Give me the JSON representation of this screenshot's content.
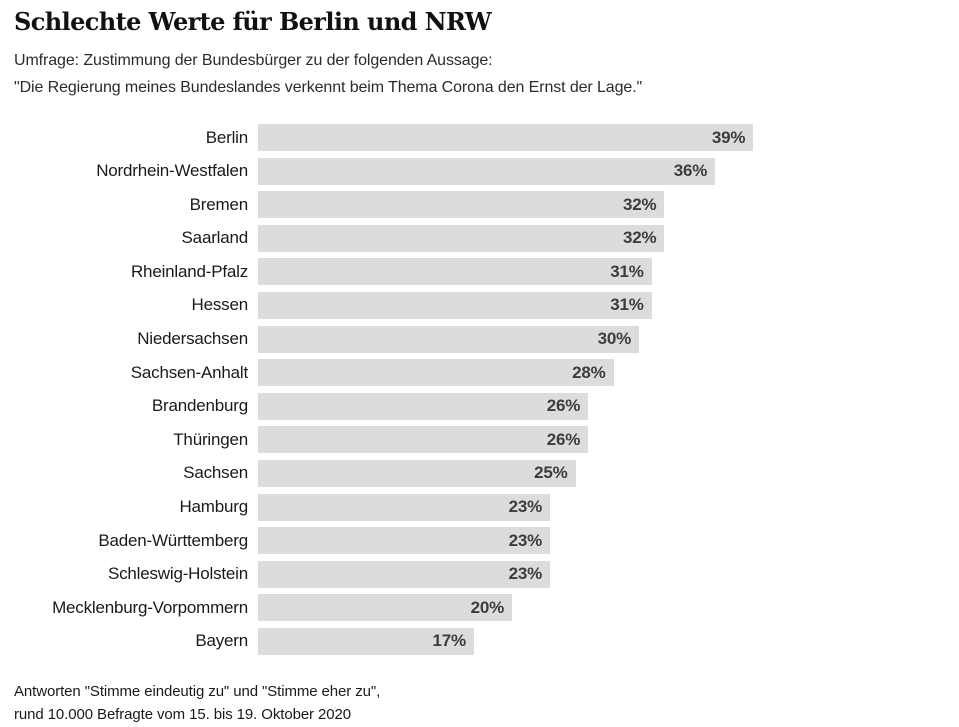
{
  "header": {
    "title": "Schlechte Werte für Berlin und NRW",
    "subtitle_line1": "Umfrage: Zustimmung der Bundesbürger zu der folgenden Aussage:",
    "subtitle_line2": "\"Die Regierung meines Bundeslandes verkennt beim Thema Corona den Ernst der Lage.\""
  },
  "chart_data": {
    "type": "bar",
    "orientation": "horizontal",
    "title": "Schlechte Werte für Berlin und NRW",
    "categories": [
      "Berlin",
      "Nordrhein-Westfalen",
      "Bremen",
      "Saarland",
      "Rheinland-Pfalz",
      "Hessen",
      "Niedersachsen",
      "Sachsen-Anhalt",
      "Brandenburg",
      "Thüringen",
      "Sachsen",
      "Hamburg",
      "Baden-Württemberg",
      "Schleswig-Holstein",
      "Mecklenburg-Vorpommern",
      "Bayern"
    ],
    "values": [
      39,
      36,
      32,
      32,
      31,
      31,
      30,
      28,
      26,
      26,
      25,
      23,
      23,
      23,
      20,
      17
    ],
    "value_suffix": "%",
    "xlim": [
      0,
      40
    ],
    "grid": false,
    "legend": false,
    "bar_color": "#dcdcda",
    "value_label_color": "#3d3d3d",
    "category_label_color": "#1a1a1a"
  },
  "footer": {
    "line1": "Antworten \"Stimme eindeutig zu\" und \"Stimme eher zu\",",
    "line2": "rund 10.000 Befragte vom 15. bis 19. Oktober 2020"
  }
}
